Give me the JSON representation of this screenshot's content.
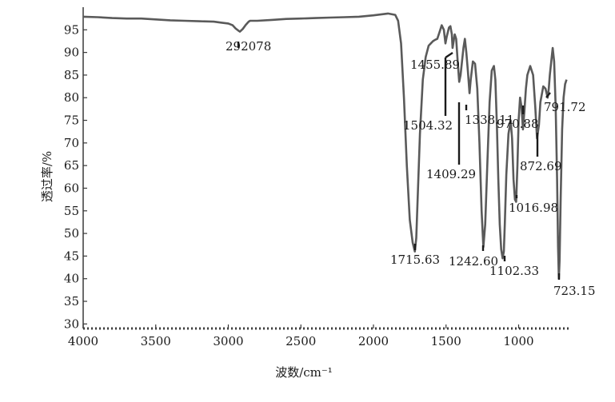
{
  "chart_data": {
    "type": "line",
    "title": "",
    "xlabel": "波数/cm⁻¹",
    "ylabel": "透过率/%",
    "xlim": [
      4000,
      650
    ],
    "ylim": [
      29,
      100
    ],
    "x_reversed": true,
    "grid": false,
    "x_ticks": [
      4000,
      3500,
      3000,
      2500,
      2000,
      1500,
      1000
    ],
    "y_ticks": [
      30,
      35,
      40,
      45,
      50,
      55,
      60,
      65,
      70,
      75,
      80,
      85,
      90,
      95
    ],
    "colors": {
      "line": "#5a5a5a",
      "axis": "#3a3a3a",
      "annotation": "#1a1a1a"
    },
    "series": [
      {
        "x": [
          4000,
          3900,
          3800,
          3700,
          3600,
          3500,
          3400,
          3300,
          3200,
          3100,
          3050,
          3000,
          2970,
          2950,
          2930,
          2920,
          2900,
          2880,
          2860,
          2850,
          2800,
          2700,
          2600,
          2500,
          2400,
          2300,
          2200,
          2100,
          2000,
          1950,
          1900,
          1850,
          1830,
          1810,
          1790,
          1770,
          1750,
          1730,
          1715,
          1705,
          1695,
          1680,
          1660,
          1640,
          1620,
          1605,
          1590,
          1575,
          1560,
          1545,
          1530,
          1515,
          1504,
          1495,
          1480,
          1470,
          1460,
          1455,
          1450,
          1440,
          1430,
          1420,
          1409,
          1400,
          1390,
          1380,
          1370,
          1360,
          1350,
          1338,
          1330,
          1315,
          1300,
          1285,
          1270,
          1255,
          1243,
          1230,
          1215,
          1200,
          1185,
          1170,
          1160,
          1150,
          1140,
          1130,
          1120,
          1110,
          1102,
          1095,
          1085,
          1070,
          1055,
          1045,
          1035,
          1025,
          1017,
          1008,
          1000,
          990,
          980,
          970,
          960,
          950,
          940,
          920,
          900,
          885,
          873,
          860,
          850,
          830,
          815,
          800,
          792,
          785,
          775,
          765,
          755,
          745,
          735,
          728,
          723,
          718,
          710,
          700,
          690,
          680,
          670
        ],
        "y": [
          97.9,
          97.8,
          97.6,
          97.5,
          97.5,
          97.3,
          97.1,
          97.0,
          96.9,
          96.8,
          96.6,
          96.4,
          96.0,
          95.3,
          94.8,
          94.6,
          95.2,
          96.1,
          96.8,
          97.0,
          97.0,
          97.2,
          97.4,
          97.5,
          97.6,
          97.7,
          97.8,
          97.9,
          98.2,
          98.4,
          98.6,
          98.3,
          97.0,
          92.0,
          80.0,
          65.0,
          53.0,
          48.0,
          46.0,
          49.0,
          58.0,
          72.0,
          84.0,
          89.0,
          91.5,
          92.0,
          92.5,
          92.8,
          93.0,
          94.5,
          96.0,
          95.0,
          92.0,
          93.5,
          95.5,
          95.8,
          94.0,
          91.0,
          92.0,
          94.0,
          93.0,
          88.0,
          83.5,
          85.0,
          88.0,
          91.0,
          93.0,
          90.0,
          86.0,
          81.0,
          84.0,
          88.0,
          87.5,
          82.0,
          70.0,
          55.0,
          47.0,
          52.0,
          66.0,
          79.0,
          86.0,
          87.0,
          84.0,
          74.0,
          62.0,
          52.0,
          46.5,
          44.5,
          46.0,
          52.0,
          63.0,
          72.0,
          75.0,
          71.0,
          62.0,
          57.5,
          57.0,
          65.0,
          75.0,
          80.0,
          78.0,
          73.0,
          77.0,
          82.0,
          85.0,
          87.0,
          85.0,
          78.0,
          71.0,
          74.0,
          79.0,
          82.5,
          82.0,
          80.0,
          82.0,
          85.0,
          88.0,
          91.0,
          88.0,
          78.0,
          62.0,
          47.0,
          40.0,
          44.0,
          58.0,
          73.0,
          80.0,
          83.0,
          84.0
        ]
      }
    ],
    "annotations": [
      {
        "text": "292078",
        "x": 2920,
        "y": 94.5
      },
      {
        "text": "1455.89",
        "x": 1455,
        "y": 91.0
      },
      {
        "text": "1504.32",
        "x": 1504,
        "y": 92.0
      },
      {
        "text": "1338.11",
        "x": 1338,
        "y": 81.0
      },
      {
        "text": "970.88",
        "x": 970,
        "y": 73.0
      },
      {
        "text": "791.72",
        "x": 792,
        "y": 78.0
      },
      {
        "text": "1409.29",
        "x": 1409,
        "y": 83.5
      },
      {
        "text": "872.69",
        "x": 873,
        "y": 71.0
      },
      {
        "text": "1016.98",
        "x": 1017,
        "y": 57.0
      },
      {
        "text": "1715.63",
        "x": 1715,
        "y": 46.0
      },
      {
        "text": "1242.60",
        "x": 1243,
        "y": 47.0
      },
      {
        "text": "1102.33",
        "x": 1102,
        "y": 44.5
      },
      {
        "text": "723.15",
        "x": 723,
        "y": 40.0
      }
    ]
  }
}
